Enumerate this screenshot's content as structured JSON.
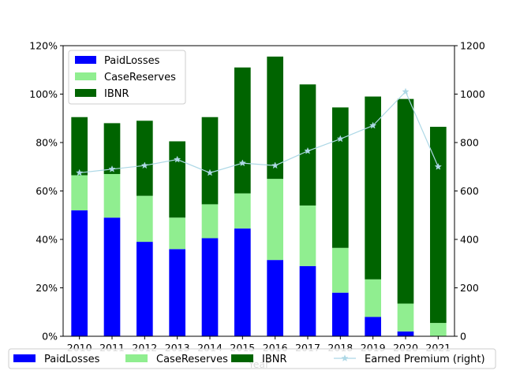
{
  "chart_data": {
    "type": "bar",
    "stacked": true,
    "categories": [
      "2010",
      "2011",
      "2012",
      "2013",
      "2014",
      "2015",
      "2016",
      "2017",
      "2018",
      "2019",
      "2020",
      "2021"
    ],
    "xlabel": "Year",
    "ylabel": "",
    "y_left": {
      "lim": [
        0,
        1.2
      ],
      "ticks": [
        0,
        0.2,
        0.4,
        0.6,
        0.8,
        1.0,
        1.2
      ],
      "tick_labels": [
        "0%",
        "20%",
        "40%",
        "60%",
        "80%",
        "100%",
        "120%"
      ]
    },
    "y_right": {
      "lim": [
        0,
        1200
      ],
      "ticks": [
        0,
        200,
        400,
        600,
        800,
        1000,
        1200
      ],
      "tick_labels": [
        "0",
        "200",
        "400",
        "600",
        "800",
        "1000",
        "1200"
      ]
    },
    "series": [
      {
        "name": "PaidLosses",
        "color": "#0000ff",
        "axis": "left",
        "values": [
          0.52,
          0.49,
          0.39,
          0.36,
          0.405,
          0.445,
          0.315,
          0.29,
          0.18,
          0.08,
          0.02,
          0.0
        ]
      },
      {
        "name": "CaseReserves",
        "color": "#90ee90",
        "axis": "left",
        "values": [
          0.145,
          0.18,
          0.19,
          0.13,
          0.14,
          0.145,
          0.335,
          0.25,
          0.185,
          0.155,
          0.115,
          0.055
        ]
      },
      {
        "name": "IBNR",
        "color": "#006400",
        "axis": "left",
        "values": [
          0.24,
          0.21,
          0.31,
          0.315,
          0.36,
          0.52,
          0.505,
          0.5,
          0.58,
          0.755,
          0.845,
          0.81
        ]
      },
      {
        "name": "Earned Premium (right)",
        "type": "line",
        "color": "#add8e6",
        "marker": "star",
        "axis": "right",
        "values": [
          675,
          690,
          705,
          730,
          675,
          715,
          705,
          765,
          815,
          870,
          1010,
          700
        ]
      }
    ],
    "legend_upper": {
      "placement": "upper-left",
      "entries": [
        "PaidLosses",
        "CaseReserves",
        "IBNR"
      ]
    },
    "legend_lower": {
      "placement": "bottom",
      "entries": [
        "PaidLosses",
        "CaseReserves",
        "IBNR",
        "Earned Premium (right)"
      ]
    },
    "grid": false
  }
}
